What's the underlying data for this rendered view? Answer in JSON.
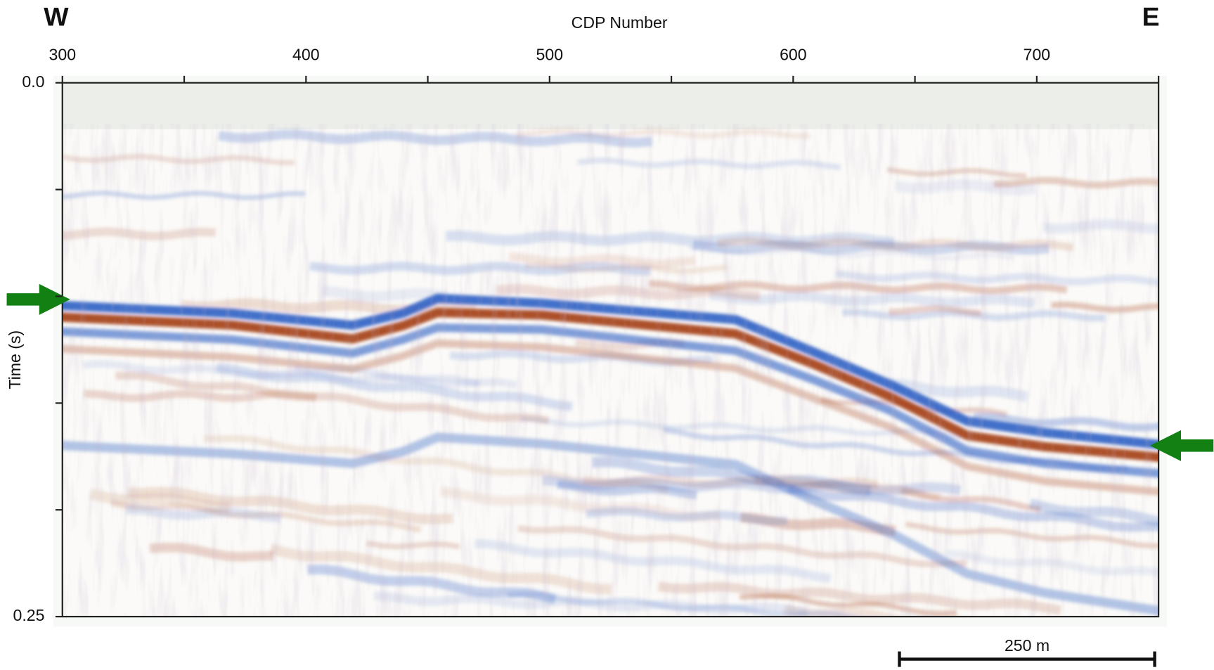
{
  "chart_data": {
    "type": "seismic",
    "title": "CDP Number",
    "ylabel": "Time (s)",
    "xlim": [
      300,
      750
    ],
    "xticks": [
      300,
      400,
      500,
      600,
      700
    ],
    "xminor": [
      350,
      450,
      550,
      650,
      750
    ],
    "ylim": [
      0,
      0.25
    ],
    "yticks": [
      {
        "value": 0,
        "label": "0.0"
      },
      0.25
    ],
    "yminor": [
      0.05,
      0.1,
      0.15,
      0.2
    ],
    "annotations": {
      "west": "W",
      "east": "E",
      "scale_bar": "250 m"
    },
    "arrow_color": "#128012"
  }
}
